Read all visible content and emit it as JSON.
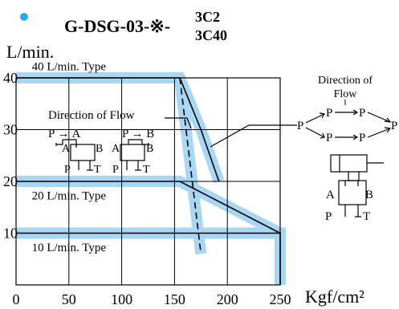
{
  "header": {
    "model_prefix": "G-DSG-03-",
    "model_mark": "※",
    "model_dash": "-",
    "model_suffix_top": "3C2",
    "model_suffix_bottom": "3C40",
    "bullet_color": "#29abe2"
  },
  "colors": {
    "band_fill": "#a9d6f3",
    "line": "#000000"
  },
  "chart_data": {
    "type": "line",
    "xlabel": "Kgf/cm²",
    "ylabel": "L/min.",
    "xlim": [
      0,
      250
    ],
    "ylim": [
      0,
      40
    ],
    "x_ticks": [
      "0",
      "50",
      "100",
      "150",
      "200",
      "250"
    ],
    "y_ticks": [
      "10",
      "20",
      "30",
      "40"
    ],
    "x_tick_values": [
      0,
      50,
      100,
      150,
      200,
      250
    ],
    "y_tick_values": [
      10,
      20,
      30,
      40
    ],
    "grid": true,
    "series": [
      {
        "name": "40 L/min. Type",
        "points": [
          [
            0,
            40
          ],
          [
            155,
            40
          ],
          [
            175,
            30
          ],
          [
            192,
            20
          ]
        ],
        "label_pos": [
          50,
          41.5
        ]
      },
      {
        "name": "20 L/min. Type",
        "points": [
          [
            0,
            20
          ],
          [
            155,
            20
          ],
          [
            250,
            10
          ]
        ],
        "label_pos": [
          50,
          16.5
        ]
      },
      {
        "name": "10 L/min. Type",
        "points": [
          [
            0,
            10
          ],
          [
            250,
            10
          ],
          [
            250,
            0
          ]
        ],
        "label_pos": [
          50,
          6.5
        ]
      }
    ],
    "dashed_line": [
      [
        155,
        40
      ],
      [
        175,
        6
      ]
    ],
    "annotations": {
      "flow_title": "Direction of Flow",
      "flow_pa": "P → A",
      "flow_pb": "P → B",
      "port_a": "A",
      "port_b": "B",
      "port_p": "P",
      "port_t": "T"
    }
  },
  "side_diagram": {
    "title_line1": "Direction of",
    "title_line2": "Flow",
    "port_p": "P",
    "port_a": "A",
    "port_b": "B",
    "port_t": "T"
  }
}
